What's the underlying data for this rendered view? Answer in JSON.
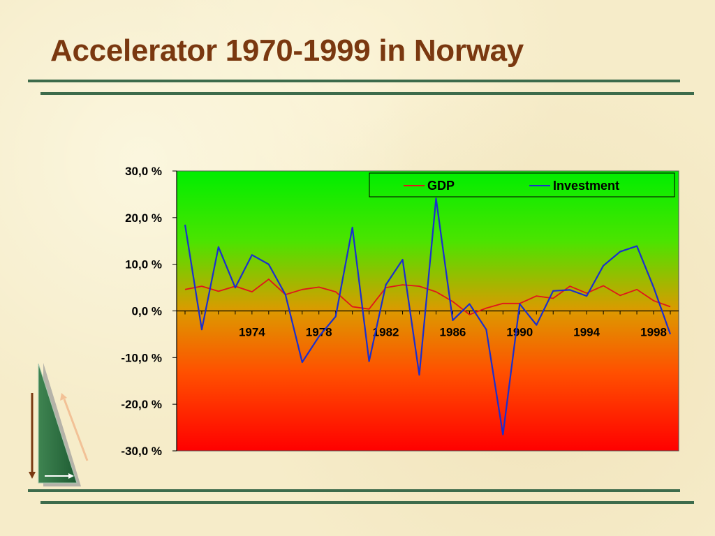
{
  "slide": {
    "title": "Accelerator 1970-1999 in Norway"
  },
  "colors": {
    "title": "#7a3810",
    "rule": "#3d6b4b",
    "gdp": "#e0151a",
    "investment": "#1a2fcf",
    "plot_top": "#00ee00",
    "plot_mid": "#dd9900",
    "plot_bottom": "#ff0000"
  },
  "chart_data": {
    "type": "line",
    "x": [
      1970,
      1971,
      1972,
      1973,
      1974,
      1975,
      1976,
      1977,
      1978,
      1979,
      1980,
      1981,
      1982,
      1983,
      1984,
      1985,
      1986,
      1987,
      1988,
      1989,
      1990,
      1991,
      1992,
      1993,
      1994,
      1995,
      1996,
      1997,
      1998,
      1999
    ],
    "x_tick_labels": [
      "1974",
      "1978",
      "1982",
      "1986",
      "1990",
      "1994",
      "1998"
    ],
    "y_tick_labels": [
      "30,0 %",
      "20,0 %",
      "10,0 %",
      "0,0 %",
      "-10,0 %",
      "-20,0 %",
      "-30,0 %"
    ],
    "y_tick_values": [
      30,
      20,
      10,
      0,
      -10,
      -20,
      -30
    ],
    "ylim": [
      -30,
      30
    ],
    "series": [
      {
        "name": "GDP",
        "values": [
          4.6,
          5.3,
          4.2,
          5.3,
          4.1,
          6.8,
          3.5,
          4.6,
          5.1,
          4.1,
          0.9,
          0.4,
          5.0,
          5.6,
          5.3,
          4.1,
          2.0,
          -0.8,
          0.6,
          1.6,
          1.6,
          3.2,
          2.7,
          5.3,
          3.8,
          5.4,
          3.3,
          4.6,
          2.2,
          0.9
        ]
      },
      {
        "name": "Investment",
        "values": [
          18.5,
          -4.0,
          13.7,
          5.0,
          12.0,
          10.0,
          3.5,
          -11.0,
          -5.5,
          -1.2,
          17.9,
          -10.8,
          5.6,
          11.0,
          -13.7,
          24.1,
          -2.0,
          1.5,
          -4.0,
          -26.5,
          1.5,
          -3.0,
          4.3,
          4.5,
          3.2,
          9.7,
          12.7,
          13.9,
          5.1,
          -5.0
        ]
      }
    ],
    "legend": {
      "position": "top-right"
    },
    "grid": false
  }
}
